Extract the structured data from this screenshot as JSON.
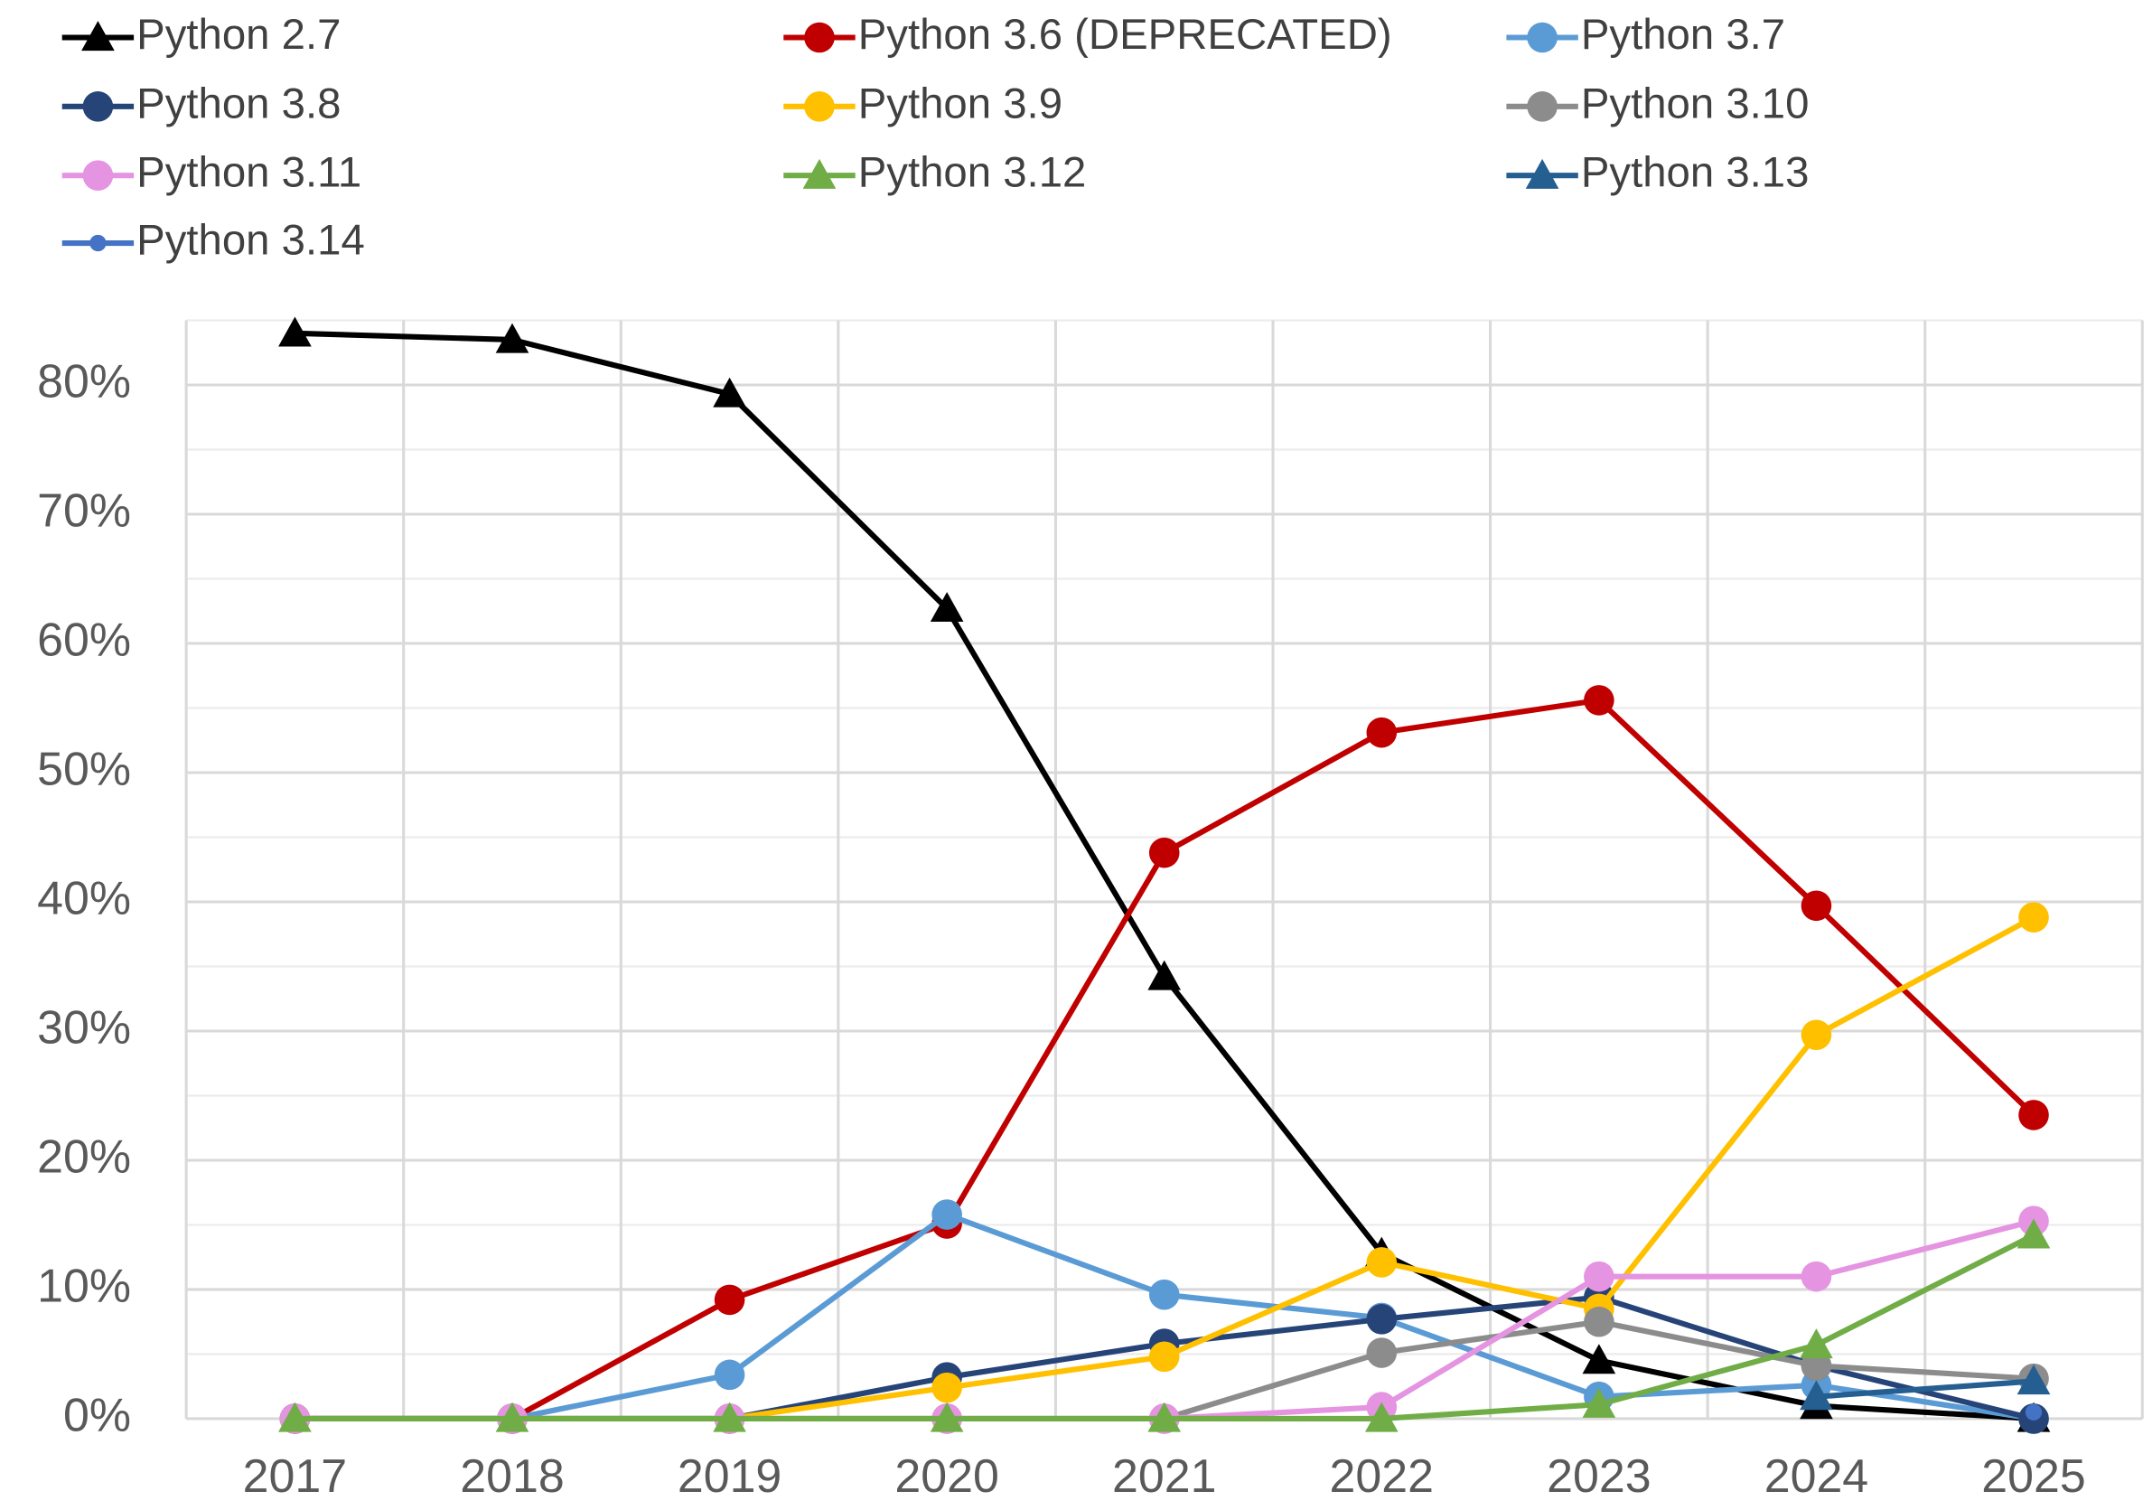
{
  "chart_data": {
    "type": "line",
    "categories": [
      "2017",
      "2018",
      "2019",
      "2020",
      "2021",
      "2022",
      "2023",
      "2024",
      "2025"
    ],
    "ylim": [
      0,
      85
    ],
    "yticks": [
      {
        "value": 0,
        "label": "0%"
      },
      {
        "value": 10,
        "label": "10%"
      },
      {
        "value": 20,
        "label": "20%"
      },
      {
        "value": 30,
        "label": "30%"
      },
      {
        "value": 40,
        "label": "40%"
      },
      {
        "value": 50,
        "label": "50%"
      },
      {
        "value": 60,
        "label": "60%"
      },
      {
        "value": 70,
        "label": "70%"
      },
      {
        "value": 80,
        "label": "80%"
      }
    ],
    "minor_yticks": [
      5,
      15,
      25,
      35,
      45,
      55,
      65,
      75,
      85
    ],
    "grid": true,
    "legend": "top",
    "series": [
      {
        "name": "Python 2.7",
        "color": "#000000",
        "marker": "triangle",
        "values": [
          84.0,
          83.5,
          79.3,
          62.7,
          34.2,
          12.8,
          4.5,
          1.0,
          0
        ]
      },
      {
        "name": "Python 3.6 (DEPRECATED)",
        "color": "#c00000",
        "marker": "circle",
        "values": [
          0,
          0,
          9.2,
          15.1,
          43.8,
          53.1,
          55.6,
          39.7,
          23.5
        ]
      },
      {
        "name": "Python 3.7",
        "color": "#5b9bd5",
        "marker": "circle",
        "values": [
          0,
          0,
          3.4,
          15.8,
          9.6,
          7.8,
          1.7,
          2.6,
          0
        ]
      },
      {
        "name": "Python 3.8",
        "color": "#264478",
        "marker": "circle",
        "values": [
          0,
          0,
          0,
          3.2,
          5.8,
          7.7,
          9.4,
          4.1,
          0
        ]
      },
      {
        "name": "Python 3.9",
        "color": "#ffc000",
        "marker": "circle",
        "values": [
          0,
          0,
          0,
          2.4,
          4.8,
          12.1,
          8.5,
          29.7,
          38.8
        ]
      },
      {
        "name": "Python 3.10",
        "color": "#8c8c8c",
        "marker": "circle",
        "values": [
          0,
          0,
          0,
          0,
          0,
          5.1,
          7.5,
          4.1,
          3.1
        ]
      },
      {
        "name": "Python 3.11",
        "color": "#e494e0",
        "marker": "circle",
        "values": [
          0,
          0,
          0,
          0,
          0,
          0.9,
          11.0,
          11.0,
          15.3
        ]
      },
      {
        "name": "Python 3.12",
        "color": "#70ad47",
        "marker": "triangle",
        "values": [
          0,
          0,
          0,
          0,
          0,
          0,
          1.1,
          5.7,
          14.2
        ]
      },
      {
        "name": "Python 3.13",
        "color": "#255e91",
        "marker": "triangle",
        "values": [
          null,
          null,
          null,
          null,
          null,
          null,
          null,
          1.7,
          2.9
        ]
      },
      {
        "name": "Python 3.14",
        "color": "#4472c4",
        "marker": "small-circle",
        "values": [
          null,
          null,
          null,
          null,
          null,
          null,
          null,
          null,
          0.5
        ]
      }
    ]
  }
}
